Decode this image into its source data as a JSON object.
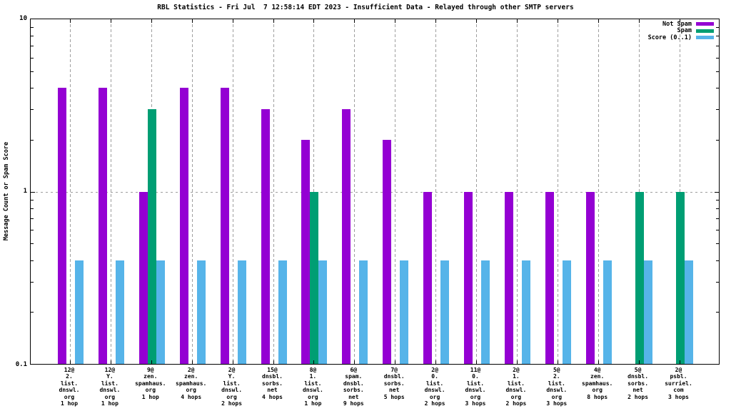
{
  "chart_data": {
    "type": "bar",
    "title": "RBL Statistics - Fri Jul  7 12:58:14 EDT 2023 - Insufficient Data - Relayed through other SMTP servers",
    "ylabel": "Message Count or Spam Score",
    "xlabel": "",
    "yscale": "log",
    "ylim": [
      0.1,
      10
    ],
    "ytick_labels": [
      "0.1",
      "1",
      "10"
    ],
    "ygrid_line_at": 1,
    "grid": "vertical dashed line at each category; horizontal dashed line at y=1",
    "legend_position": "top-right inside plot",
    "categories": [
      [
        "12@",
        "2.",
        "list.",
        "dnswl.",
        "org",
        "1 hop"
      ],
      [
        "12@",
        "Y.",
        "list.",
        "dnswl.",
        "org",
        "1 hop"
      ],
      [
        "9@",
        "zen.",
        "spamhaus.",
        "org",
        "1 hop"
      ],
      [
        "2@",
        "zen.",
        "spamhaus.",
        "org",
        "4 hops"
      ],
      [
        "2@",
        "Y.",
        "list.",
        "dnswl.",
        "org",
        "2 hops"
      ],
      [
        "15@",
        "dnsbl.",
        "sorbs.",
        "net",
        "4 hops"
      ],
      [
        "8@",
        "1.",
        "list.",
        "dnswl.",
        "org",
        "1 hop"
      ],
      [
        "6@",
        "spam.",
        "dnsbl.",
        "sorbs.",
        "net",
        "9 hops"
      ],
      [
        "7@",
        "dnsbl.",
        "sorbs.",
        "net",
        "5 hops"
      ],
      [
        "2@",
        "0.",
        "list.",
        "dnswl.",
        "org",
        "2 hops"
      ],
      [
        "11@",
        "0.",
        "list.",
        "dnswl.",
        "org",
        "3 hops"
      ],
      [
        "2@",
        "1.",
        "list.",
        "dnswl.",
        "org",
        "2 hops"
      ],
      [
        "5@",
        "2.",
        "list.",
        "dnswl.",
        "org",
        "3 hops"
      ],
      [
        "4@",
        "zen.",
        "spamhaus.",
        "org",
        "8 hops"
      ],
      [
        "5@",
        "dnsbl.",
        "sorbs.",
        "net",
        "2 hops"
      ],
      [
        "2@",
        "psbl.",
        "surriel.",
        "com",
        "3 hops"
      ]
    ],
    "series": [
      {
        "name": "Not Spam",
        "color": "#9400d3",
        "values": [
          4,
          4,
          1,
          4,
          4,
          3,
          2,
          3,
          2,
          1,
          1,
          1,
          1,
          1,
          0,
          0
        ]
      },
      {
        "name": "Spam",
        "color": "#009e73",
        "values": [
          0,
          0,
          3,
          0,
          0,
          0,
          1,
          0,
          0,
          0,
          0,
          0,
          0,
          0,
          1,
          1
        ]
      },
      {
        "name": "Score (0..1)",
        "color": "#56b4e9",
        "values": [
          0.4,
          0.4,
          0.4,
          0.4,
          0.4,
          0.4,
          0.4,
          0.4,
          0.4,
          0.4,
          0.4,
          0.4,
          0.4,
          0.4,
          0.4,
          0.4
        ]
      }
    ],
    "colors": {
      "background": "#ffffff",
      "border": "#000000",
      "grid": "#9e9e9e"
    }
  }
}
